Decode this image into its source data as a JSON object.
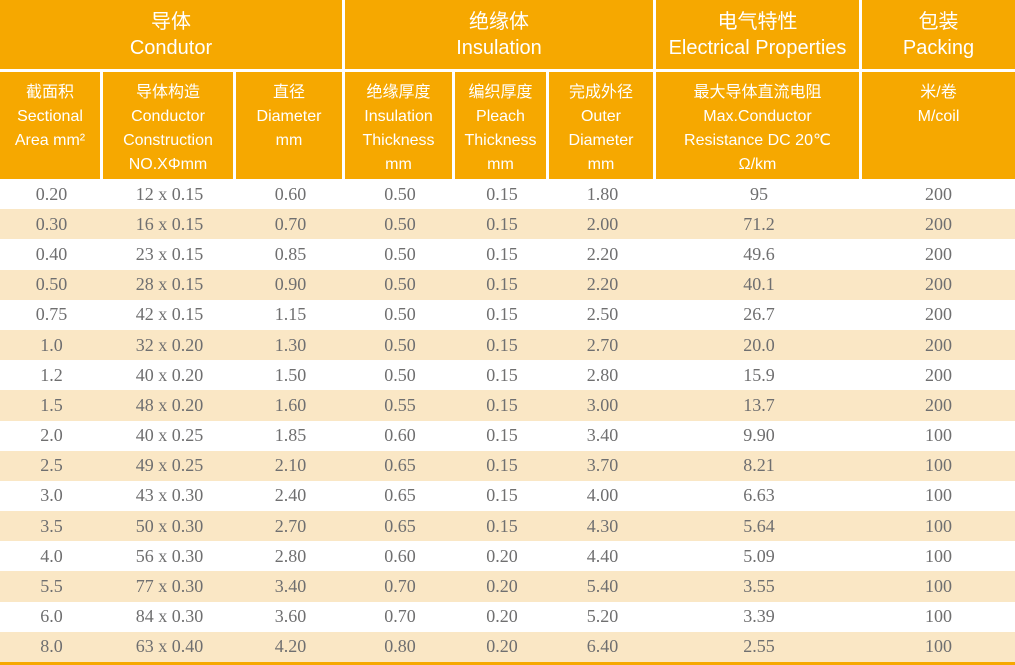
{
  "colors": {
    "header_orange": "#F6A800",
    "row_cream": "#FAE7C5",
    "row_white": "#FFFFFF",
    "data_text": "#6F6F70",
    "header_text": "#FFFFFF",
    "separator": "#FFFFFF"
  },
  "table": {
    "groups": [
      {
        "label": "导体\nCondutor"
      },
      {
        "label": "绝缘体\nInsulation"
      },
      {
        "label": "电气特性\nElectrical Properties"
      },
      {
        "label": "包装\nPacking"
      }
    ],
    "columns": [
      {
        "label": "截面积\nSectional\nArea mm²"
      },
      {
        "label": "导体构造\nConductor\nConstruction\nNO.XΦmm"
      },
      {
        "label": "直径\nDiameter\nmm"
      },
      {
        "label": "绝缘厚度\nInsulation\nThickness\nmm"
      },
      {
        "label": "编织厚度\nPleach\nThickness\nmm"
      },
      {
        "label": "完成外径\nOuter\nDiameter\nmm"
      },
      {
        "label": "最大导体直流电阻\nMax.Conductor\nResistance DC 20℃\nΩ/km"
      },
      {
        "label": "米/卷\nM/coil"
      }
    ],
    "rows": [
      [
        "0.20",
        "12 x 0.15",
        "0.60",
        "0.50",
        "0.15",
        "1.80",
        "95",
        "200"
      ],
      [
        "0.30",
        "16 x 0.15",
        "0.70",
        "0.50",
        "0.15",
        "2.00",
        "71.2",
        "200"
      ],
      [
        "0.40",
        "23 x 0.15",
        "0.85",
        "0.50",
        "0.15",
        "2.20",
        "49.6",
        "200"
      ],
      [
        "0.50",
        "28 x 0.15",
        "0.90",
        "0.50",
        "0.15",
        "2.20",
        "40.1",
        "200"
      ],
      [
        "0.75",
        "42 x 0.15",
        "1.15",
        "0.50",
        "0.15",
        "2.50",
        "26.7",
        "200"
      ],
      [
        "1.0",
        "32 x 0.20",
        "1.30",
        "0.50",
        "0.15",
        "2.70",
        "20.0",
        "200"
      ],
      [
        "1.2",
        "40 x 0.20",
        "1.50",
        "0.50",
        "0.15",
        "2.80",
        "15.9",
        "200"
      ],
      [
        "1.5",
        "48 x 0.20",
        "1.60",
        "0.55",
        "0.15",
        "3.00",
        "13.7",
        "200"
      ],
      [
        "2.0",
        "40 x 0.25",
        "1.85",
        "0.60",
        "0.15",
        "3.40",
        "9.90",
        "100"
      ],
      [
        "2.5",
        "49 x 0.25",
        "2.10",
        "0.65",
        "0.15",
        "3.70",
        "8.21",
        "100"
      ],
      [
        "3.0",
        "43 x 0.30",
        "2.40",
        "0.65",
        "0.15",
        "4.00",
        "6.63",
        "100"
      ],
      [
        "3.5",
        "50 x 0.30",
        "2.70",
        "0.65",
        "0.15",
        "4.30",
        "5.64",
        "100"
      ],
      [
        "4.0",
        "56 x 0.30",
        "2.80",
        "0.60",
        "0.20",
        "4.40",
        "5.09",
        "100"
      ],
      [
        "5.5",
        "77 x 0.30",
        "3.40",
        "0.70",
        "0.20",
        "5.40",
        "3.55",
        "100"
      ],
      [
        "6.0",
        "84 x 0.30",
        "3.60",
        "0.70",
        "0.20",
        "5.20",
        "3.39",
        "100"
      ],
      [
        "8.0",
        "63 x 0.40",
        "4.20",
        "0.80",
        "0.20",
        "6.40",
        "2.55",
        "100"
      ]
    ]
  }
}
